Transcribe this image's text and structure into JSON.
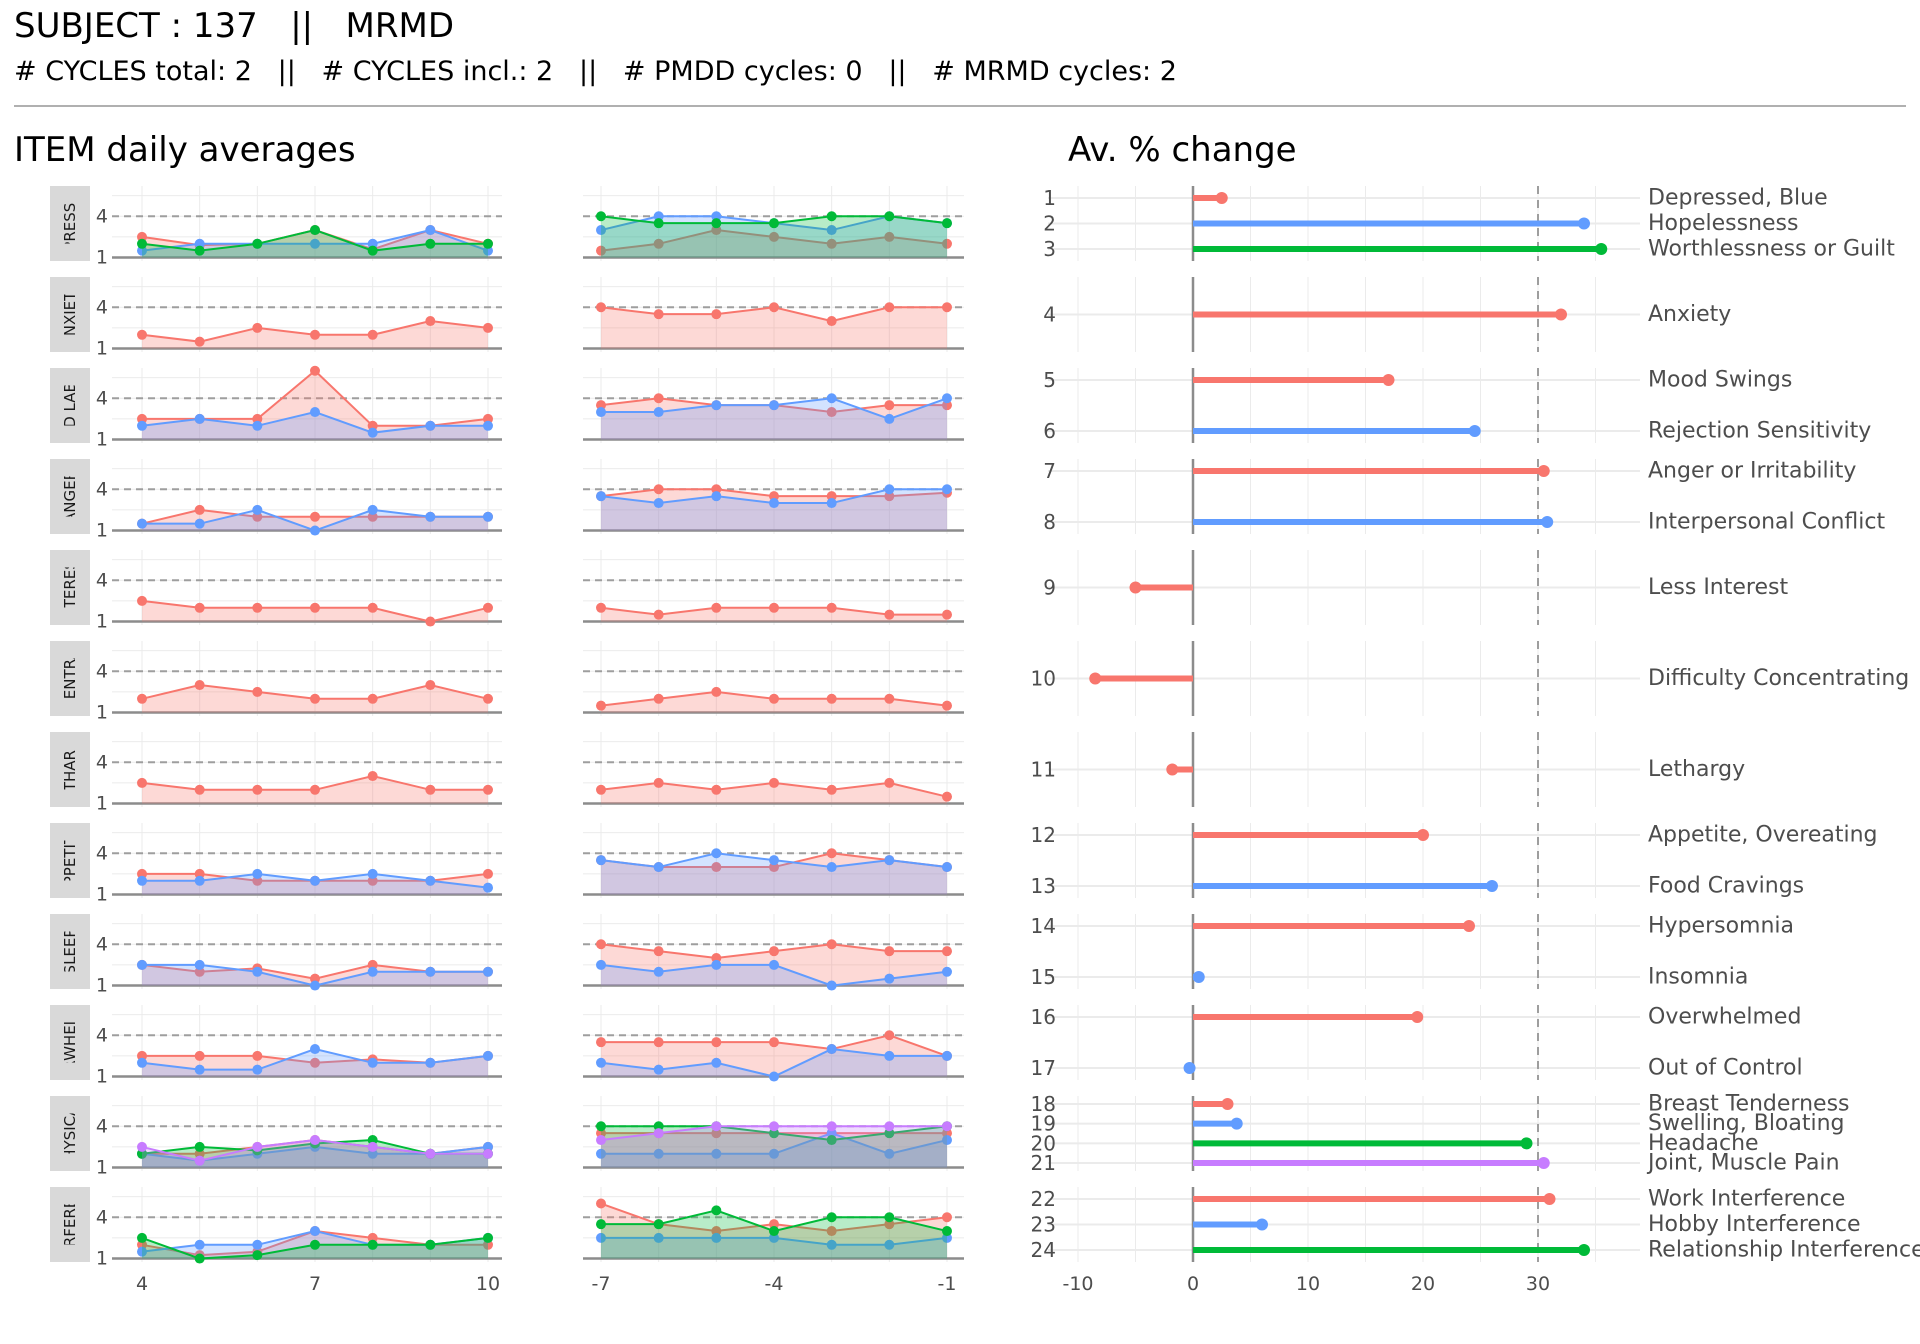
{
  "header": {
    "title": "SUBJECT : 137   ||   MRMD",
    "subtitle": "# CYCLES total: 2   ||   # CYCLES incl.: 2   ||   # PMDD cycles: 0   ||   # MRMD cycles: 2"
  },
  "colors": {
    "s1": "#F8766D",
    "s2": "#619CFF",
    "s3": "#00BA38",
    "s4": "#C77CFF"
  },
  "chart_data": [
    {
      "type": "line",
      "title": "ITEM daily averages",
      "yticks": [
        1,
        4
      ],
      "left_x_ticks": [
        4,
        7,
        10
      ],
      "right_x_ticks": [
        -7,
        -4,
        -1
      ],
      "left_x": [
        4,
        5,
        6,
        7,
        8,
        9,
        10
      ],
      "right_x": [
        -7,
        -6,
        -5,
        -4,
        -3,
        -2,
        -1
      ],
      "threshold": 4,
      "groups": [
        {
          "strip": "DEPRESSION",
          "left": [
            [
              2.5,
              1.9,
              2.0,
              3.0,
              1.6,
              3.0,
              2.0
            ],
            [
              1.5,
              2.0,
              2.0,
              2.0,
              2.0,
              3.0,
              1.5
            ],
            [
              2.0,
              1.5,
              2.0,
              3.0,
              1.5,
              2.0,
              2.0
            ]
          ],
          "right": [
            [
              1.5,
              2.0,
              3.0,
              2.5,
              2.0,
              2.5,
              2.0
            ],
            [
              3.0,
              4.0,
              4.0,
              3.5,
              3.0,
              4.0,
              3.5
            ],
            [
              4.0,
              3.5,
              3.5,
              3.5,
              4.0,
              4.0,
              3.5
            ]
          ]
        },
        {
          "strip": "ANXIETY",
          "left": [
            [
              2.0,
              1.5,
              2.5,
              2.0,
              2.0,
              3.0,
              2.5
            ]
          ],
          "right": [
            [
              4.0,
              3.5,
              3.5,
              4.0,
              3.0,
              4.0,
              4.0
            ]
          ]
        },
        {
          "strip": "MOOD LABILITY",
          "left": [
            [
              2.5,
              2.5,
              2.5,
              6.0,
              2.0,
              2.0,
              2.5
            ],
            [
              2.0,
              2.5,
              2.0,
              3.0,
              1.5,
              2.0,
              2.0
            ]
          ],
          "right": [
            [
              3.5,
              4.0,
              3.5,
              3.5,
              3.0,
              3.5,
              3.5
            ],
            [
              3.0,
              3.0,
              3.5,
              3.5,
              4.0,
              2.5,
              4.0
            ]
          ]
        },
        {
          "strip": "ANGER",
          "left": [
            [
              1.5,
              2.5,
              2.0,
              2.0,
              2.0,
              2.0,
              2.0
            ],
            [
              1.5,
              1.5,
              2.5,
              1.0,
              2.5,
              2.0,
              2.0
            ]
          ],
          "right": [
            [
              3.5,
              4.0,
              4.0,
              3.5,
              3.5,
              3.5,
              3.75
            ],
            [
              3.5,
              3.0,
              3.5,
              3.0,
              3.0,
              4.0,
              4.0
            ]
          ]
        },
        {
          "strip": "INTEREST",
          "left": [
            [
              2.5,
              2.0,
              2.0,
              2.0,
              2.0,
              1.0,
              2.0
            ]
          ],
          "right": [
            [
              2.0,
              1.5,
              2.0,
              2.0,
              2.0,
              1.5,
              1.5
            ]
          ]
        },
        {
          "strip": "CONCENTRATION",
          "left": [
            [
              2.0,
              3.0,
              2.5,
              2.0,
              2.0,
              3.0,
              2.0
            ]
          ],
          "right": [
            [
              1.5,
              2.0,
              2.5,
              2.0,
              2.0,
              2.0,
              1.5
            ]
          ]
        },
        {
          "strip": "LETHARGY",
          "left": [
            [
              2.5,
              2.0,
              2.0,
              2.0,
              3.0,
              2.0,
              2.0
            ]
          ],
          "right": [
            [
              2.0,
              2.5,
              2.0,
              2.5,
              2.0,
              2.5,
              1.5
            ]
          ]
        },
        {
          "strip": "APPETITE",
          "left": [
            [
              2.5,
              2.5,
              2.0,
              2.0,
              2.0,
              2.0,
              2.5
            ],
            [
              2.0,
              2.0,
              2.5,
              2.0,
              2.5,
              2.0,
              1.5
            ]
          ],
          "right": [
            [
              3.5,
              3.0,
              3.0,
              3.0,
              4.0,
              3.5,
              3.0
            ],
            [
              3.5,
              3.0,
              4.0,
              3.5,
              3.0,
              3.5,
              3.0
            ]
          ]
        },
        {
          "strip": "SLEEP",
          "left": [
            [
              2.5,
              2.0,
              2.25,
              1.5,
              2.5,
              2.0,
              2.0
            ],
            [
              2.5,
              2.5,
              2.0,
              1.0,
              2.0,
              2.0,
              2.0
            ]
          ],
          "right": [
            [
              4.0,
              3.5,
              3.0,
              3.5,
              4.0,
              3.5,
              3.5
            ],
            [
              2.5,
              2.0,
              2.5,
              2.5,
              1.0,
              1.5,
              2.0
            ]
          ]
        },
        {
          "strip": "OVERWHELMED",
          "left": [
            [
              2.5,
              2.5,
              2.5,
              2.0,
              2.25,
              2.0,
              2.5
            ],
            [
              2.0,
              1.5,
              1.5,
              3.0,
              2.0,
              2.0,
              2.5
            ]
          ],
          "right": [
            [
              3.5,
              3.5,
              3.5,
              3.5,
              3.0,
              4.0,
              2.5
            ],
            [
              2.0,
              1.5,
              2.0,
              1.0,
              3.0,
              2.5,
              2.5
            ]
          ]
        },
        {
          "strip": "PHYSICAL",
          "left": [
            [
              2.0,
              2.0,
              2.5,
              3.0,
              2.5,
              2.0,
              2.5
            ],
            [
              2.0,
              1.5,
              2.0,
              2.5,
              2.0,
              2.0,
              2.5
            ],
            [
              2.0,
              2.5,
              2.25,
              2.75,
              3.0,
              2.0,
              2.0
            ],
            [
              2.5,
              1.5,
              2.5,
              3.0,
              2.5,
              2.0,
              2.0
            ]
          ],
          "right": [
            [
              3.5,
              3.5,
              3.5,
              3.5,
              3.5,
              3.5,
              3.5
            ],
            [
              2.0,
              2.0,
              2.0,
              2.0,
              3.5,
              2.0,
              3.0
            ],
            [
              4.0,
              4.0,
              4.0,
              3.5,
              3.0,
              3.5,
              4.0
            ],
            [
              3.0,
              3.5,
              4.0,
              4.0,
              4.0,
              4.0,
              4.0
            ]
          ]
        },
        {
          "strip": "INTERFERENCE",
          "left": [
            [
              2.0,
              1.25,
              1.5,
              3.0,
              2.5,
              2.0,
              2.0
            ],
            [
              1.5,
              2.0,
              2.0,
              3.0,
              2.0,
              2.0,
              2.5
            ],
            [
              2.5,
              1.0,
              1.25,
              2.0,
              2.0,
              2.0,
              2.5
            ]
          ],
          "right": [
            [
              5.0,
              3.5,
              3.0,
              3.5,
              3.0,
              3.5,
              4.0
            ],
            [
              2.5,
              2.5,
              2.5,
              2.5,
              2.0,
              2.0,
              2.5
            ],
            [
              3.5,
              3.5,
              4.5,
              3.0,
              4.0,
              4.0,
              3.0
            ]
          ]
        }
      ]
    },
    {
      "type": "bar",
      "title": "Av. % change",
      "xticks": [
        -10,
        0,
        10,
        20,
        30
      ],
      "xlim": [
        -11,
        36
      ],
      "reference_line": 30,
      "groups": [
        {
          "items": [
            {
              "num": "1",
              "label": "Depressed, Blue",
              "value": 2.5
            },
            {
              "num": "2",
              "label": "Hopelessness",
              "value": 34
            },
            {
              "num": "3",
              "label": "Worthlessness or Guilt",
              "value": 35.5
            }
          ]
        },
        {
          "items": [
            {
              "num": "4",
              "label": "Anxiety",
              "value": 32
            }
          ]
        },
        {
          "items": [
            {
              "num": "5",
              "label": "Mood Swings",
              "value": 17
            },
            {
              "num": "6",
              "label": "Rejection Sensitivity",
              "value": 24.5
            }
          ]
        },
        {
          "items": [
            {
              "num": "7",
              "label": "Anger or Irritability",
              "value": 30.5
            },
            {
              "num": "8",
              "label": "Interpersonal Conflict",
              "value": 30.8
            }
          ]
        },
        {
          "items": [
            {
              "num": "9",
              "label": "Less Interest",
              "value": -5
            }
          ]
        },
        {
          "items": [
            {
              "num": "10",
              "label": "Difficulty Concentrating",
              "value": -8.5
            }
          ]
        },
        {
          "items": [
            {
              "num": "11",
              "label": "Lethargy",
              "value": -1.8
            }
          ]
        },
        {
          "items": [
            {
              "num": "12",
              "label": "Appetite, Overeating",
              "value": 20
            },
            {
              "num": "13",
              "label": "Food Cravings",
              "value": 26
            }
          ]
        },
        {
          "items": [
            {
              "num": "14",
              "label": "Hypersomnia",
              "value": 24
            },
            {
              "num": "15",
              "label": "Insomnia",
              "value": 0.5
            }
          ]
        },
        {
          "items": [
            {
              "num": "16",
              "label": "Overwhelmed",
              "value": 19.5
            },
            {
              "num": "17",
              "label": "Out of Control",
              "value": -0.3
            }
          ]
        },
        {
          "items": [
            {
              "num": "18",
              "label": "Breast Tenderness",
              "value": 3
            },
            {
              "num": "19",
              "label": "Swelling, Bloating",
              "value": 3.8
            },
            {
              "num": "20",
              "label": "Headache",
              "value": 29
            },
            {
              "num": "21",
              "label": "Joint, Muscle Pain",
              "value": 30.5
            }
          ]
        },
        {
          "items": [
            {
              "num": "22",
              "label": "Work Interference",
              "value": 31
            },
            {
              "num": "23",
              "label": "Hobby Interference",
              "value": 6
            },
            {
              "num": "24",
              "label": "Relationship Interference",
              "value": 34
            }
          ]
        }
      ]
    }
  ]
}
